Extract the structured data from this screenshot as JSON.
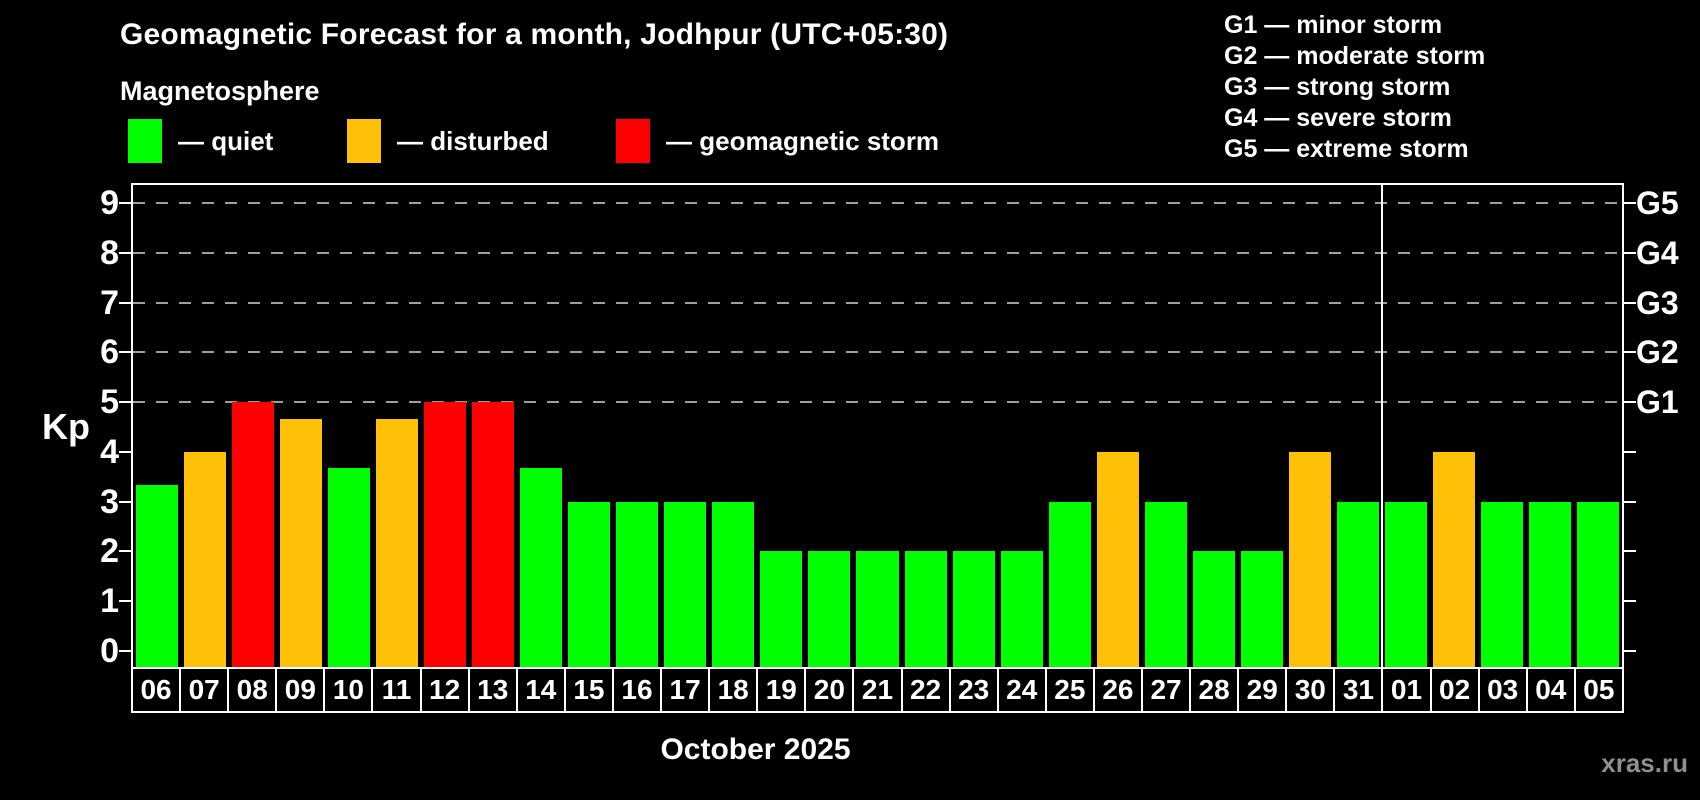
{
  "header": {
    "title": "Geomagnetic Forecast for a month, Jodhpur (UTC+05:30)",
    "subtitle": "Magnetosphere"
  },
  "legend": {
    "items": [
      {
        "id": "quiet",
        "label": "— quiet",
        "color": "#00ff00"
      },
      {
        "id": "disturbed",
        "label": "— disturbed",
        "color": "#ffc107"
      },
      {
        "id": "storm",
        "label": "— geomagnetic storm",
        "color": "#ff0000"
      }
    ]
  },
  "g_legend": {
    "items": [
      {
        "code": "G1",
        "label": "G1 — minor storm"
      },
      {
        "code": "G2",
        "label": "G2 — moderate storm"
      },
      {
        "code": "G3",
        "label": "G3 — strong storm"
      },
      {
        "code": "G4",
        "label": "G4 — severe storm"
      },
      {
        "code": "G5",
        "label": "G5 — extreme storm"
      }
    ]
  },
  "chart_data": {
    "type": "bar",
    "title": "Geomagnetic Forecast for a month, Jodhpur (UTC+05:30)",
    "subtitle": "Magnetosphere",
    "ylabel": "Kp",
    "xlabel": "October 2025",
    "ylim": [
      0,
      9.4
    ],
    "yticks": [
      0,
      1,
      2,
      3,
      4,
      5,
      6,
      7,
      8,
      9
    ],
    "gridlines_at": [
      5,
      6,
      7,
      8,
      9
    ],
    "grid_style": "dashed horizontal gray lines at Kp 5-9",
    "legend_position": "top-left",
    "right_axis_labels": [
      {
        "label": "G1",
        "value": 5
      },
      {
        "label": "G2",
        "value": 6
      },
      {
        "label": "G3",
        "value": 7
      },
      {
        "label": "G4",
        "value": 8
      },
      {
        "label": "G5",
        "value": 9
      }
    ],
    "status_colors": {
      "quiet": "#00ff00",
      "disturbed": "#ffc107",
      "storm": "#ff0000"
    },
    "categories": [
      "06",
      "07",
      "08",
      "09",
      "10",
      "11",
      "12",
      "13",
      "14",
      "15",
      "16",
      "17",
      "18",
      "19",
      "20",
      "21",
      "22",
      "23",
      "24",
      "25",
      "26",
      "27",
      "28",
      "29",
      "30",
      "31",
      "01",
      "02",
      "03",
      "04",
      "05"
    ],
    "values": [
      3.33,
      4,
      5,
      4.67,
      3.67,
      4.67,
      5,
      5,
      3.67,
      3,
      3,
      3,
      3,
      2,
      2,
      2,
      2,
      2,
      2,
      3,
      4,
      3,
      2,
      2,
      4,
      3,
      3,
      4,
      3,
      3,
      3
    ],
    "statuses": [
      "quiet",
      "disturbed",
      "storm",
      "disturbed",
      "quiet",
      "disturbed",
      "storm",
      "storm",
      "quiet",
      "quiet",
      "quiet",
      "quiet",
      "quiet",
      "quiet",
      "quiet",
      "quiet",
      "quiet",
      "quiet",
      "quiet",
      "quiet",
      "disturbed",
      "quiet",
      "quiet",
      "quiet",
      "disturbed",
      "quiet",
      "quiet",
      "disturbed",
      "quiet",
      "quiet",
      "quiet"
    ],
    "october_day_count": 26,
    "month_separator_between": [
      "31",
      "01"
    ]
  },
  "footer": {
    "month_label": "October 2025",
    "watermark": "xras.ru"
  }
}
